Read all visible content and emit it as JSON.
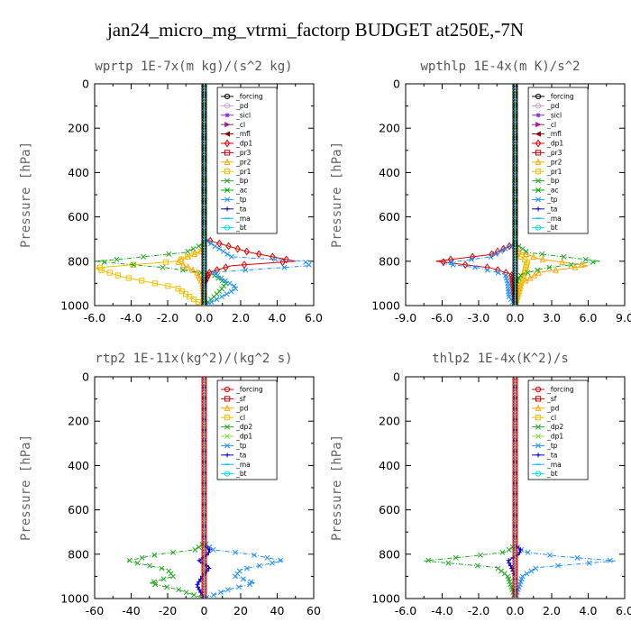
{
  "title": "jan24_micro_mg_vtrmi_factorp  BUDGET at250E,-7N",
  "chart_data": [
    {
      "type": "line",
      "title": "wprtp   1E-7x(m kg)/(s^2 kg)",
      "ylabel": "Pressure  [hPa]",
      "xlim": [
        -6,
        6
      ],
      "xticks": [
        "-6.0",
        "-4.0",
        "-2.0",
        "0.0",
        "2.0",
        "4.0",
        "6.0"
      ],
      "ylim": [
        0,
        1000
      ],
      "yticks": [
        "0",
        "200",
        "400",
        "600",
        "800",
        "1000"
      ],
      "series": [
        {
          "name": "_forcing",
          "color": "#000000",
          "marker": "o",
          "p": [
            0,
            200,
            400,
            600,
            700,
            800,
            900,
            1000
          ],
          "v": [
            0,
            0,
            0,
            0,
            0,
            0,
            0,
            0
          ]
        },
        {
          "name": "_pd",
          "color": "#c8a2c8",
          "marker": "o",
          "p": [
            0,
            400,
            800,
            1000
          ],
          "v": [
            0,
            0,
            0,
            0
          ]
        },
        {
          "name": "_sicl",
          "color": "#8a2be2",
          "marker": "*",
          "p": [
            0,
            400,
            800,
            1000
          ],
          "v": [
            0,
            0,
            0,
            0
          ]
        },
        {
          "name": "_cl",
          "color": "#a0208a",
          "marker": ">",
          "p": [
            0,
            400,
            800,
            1000
          ],
          "v": [
            0,
            0,
            0,
            0
          ]
        },
        {
          "name": "_mfl",
          "color": "#8b0000",
          "marker": "<",
          "p": [
            0,
            400,
            800,
            1000
          ],
          "v": [
            0,
            0,
            0,
            0
          ]
        },
        {
          "name": "_dp1",
          "color": "#e00000",
          "marker": "d",
          "p": [
            0,
            700,
            760,
            800,
            820,
            850,
            900,
            1000
          ],
          "v": [
            0,
            0,
            2.5,
            5.0,
            1.5,
            0.3,
            0,
            0
          ]
        },
        {
          "name": "_pr3",
          "color": "#e00000",
          "marker": "s",
          "p": [
            0,
            700,
            1000
          ],
          "v": [
            0,
            0,
            0
          ]
        },
        {
          "name": "_pr2",
          "color": "#ffa500",
          "marker": "^",
          "p": [
            0,
            750,
            800,
            850,
            900,
            1000
          ],
          "v": [
            0,
            0,
            -1.5,
            -0.4,
            -0.1,
            0
          ]
        },
        {
          "name": "_pr1",
          "color": "#f0c000",
          "marker": "s",
          "p": [
            0,
            750,
            800,
            830,
            870,
            920,
            960,
            1000
          ],
          "v": [
            0,
            0,
            -1.5,
            -6.0,
            -4.5,
            -1.5,
            -0.8,
            0
          ]
        },
        {
          "name": "_bp",
          "color": "#22aa22",
          "marker": "x",
          "p": [
            0,
            720,
            760,
            790,
            800,
            830,
            860,
            900,
            940,
            1000
          ],
          "v": [
            0,
            0,
            -1.0,
            -4.5,
            -6.0,
            -2.0,
            0.5,
            1.2,
            0.8,
            0
          ]
        },
        {
          "name": "_ac",
          "color": "#00aa00",
          "marker": "x",
          "p": [
            0,
            750,
            1000
          ],
          "v": [
            0,
            0,
            0
          ]
        },
        {
          "name": "_tp",
          "color": "#1e90ff",
          "marker": "x",
          "p": [
            0,
            700,
            780,
            800,
            820,
            850,
            880,
            920,
            950,
            980,
            1000
          ],
          "v": [
            0,
            0,
            1.5,
            5.5,
            5.8,
            0.5,
            1.0,
            1.8,
            1.2,
            0.5,
            0
          ]
        },
        {
          "name": "_ta",
          "color": "#0000cd",
          "marker": "+",
          "p": [
            0,
            750,
            1000
          ],
          "v": [
            0,
            0,
            0
          ]
        },
        {
          "name": "_ma",
          "color": "#00bfff",
          "marker": "-",
          "p": [
            0,
            750,
            1000
          ],
          "v": [
            0,
            0,
            0
          ]
        },
        {
          "name": "_bt",
          "color": "#00e5ee",
          "marker": "o",
          "p": [
            0,
            750,
            1000
          ],
          "v": [
            0,
            0,
            0
          ]
        }
      ]
    },
    {
      "type": "line",
      "title": "wpthlp   1E-4x(m K)/s^2",
      "ylabel": "Pressure  [hPa]",
      "xlim": [
        -9,
        9
      ],
      "xticks": [
        "-9.0",
        "-6.0",
        "-3.0",
        "0.0",
        "3.0",
        "6.0",
        "9.0"
      ],
      "ylim": [
        0,
        1000
      ],
      "yticks": [
        "0",
        "200",
        "400",
        "600",
        "800",
        "1000"
      ],
      "series": [
        {
          "name": "_forcing",
          "color": "#000000",
          "marker": "o",
          "p": [
            0,
            400,
            800,
            1000
          ],
          "v": [
            0,
            0,
            0,
            0
          ]
        },
        {
          "name": "_pd",
          "color": "#c8a2c8",
          "marker": "o",
          "p": [
            0,
            200,
            400,
            600,
            800,
            1000
          ],
          "v": [
            0,
            0,
            0,
            0,
            0,
            0
          ]
        },
        {
          "name": "_sicl",
          "color": "#8a2be2",
          "marker": "*",
          "p": [
            0,
            400,
            800,
            1000
          ],
          "v": [
            0,
            0,
            0,
            0
          ]
        },
        {
          "name": "_cl",
          "color": "#a0208a",
          "marker": ">",
          "p": [
            0,
            400,
            800,
            1000
          ],
          "v": [
            0,
            0,
            0,
            0
          ]
        },
        {
          "name": "_mfl",
          "color": "#8b0000",
          "marker": "<",
          "p": [
            0,
            400,
            800,
            1000
          ],
          "v": [
            0,
            0,
            0,
            0
          ]
        },
        {
          "name": "_dp1",
          "color": "#e00000",
          "marker": "d",
          "p": [
            0,
            720,
            770,
            800,
            830,
            860,
            1000
          ],
          "v": [
            0,
            0,
            -2.0,
            -6.5,
            -2.0,
            -0.3,
            0
          ]
        },
        {
          "name": "_pr3",
          "color": "#e00000",
          "marker": "s",
          "p": [
            0,
            700,
            1000
          ],
          "v": [
            0,
            0,
            0
          ]
        },
        {
          "name": "_pr2",
          "color": "#ffa500",
          "marker": "^",
          "p": [
            0,
            750,
            790,
            820,
            850,
            900,
            1000
          ],
          "v": [
            0,
            0,
            2.0,
            6.0,
            2.0,
            0.5,
            0
          ]
        },
        {
          "name": "_pr1",
          "color": "#f0c000",
          "marker": "s",
          "p": [
            0,
            760,
            800,
            850,
            900,
            1000
          ],
          "v": [
            0,
            0,
            1.0,
            0.8,
            0.4,
            0
          ]
        },
        {
          "name": "_bp",
          "color": "#22aa22",
          "marker": "x",
          "p": [
            0,
            720,
            760,
            800,
            830,
            860,
            900,
            1000
          ],
          "v": [
            0,
            0,
            1.0,
            7.0,
            2.5,
            0.5,
            0,
            0
          ]
        },
        {
          "name": "_ac",
          "color": "#00aa00",
          "marker": "x",
          "p": [
            0,
            750,
            1000
          ],
          "v": [
            0,
            0,
            0
          ]
        },
        {
          "name": "_tp",
          "color": "#1e90ff",
          "marker": "x",
          "p": [
            0,
            720,
            780,
            810,
            830,
            860,
            900,
            960,
            1000
          ],
          "v": [
            0,
            0,
            -2.0,
            -6.0,
            -3.0,
            -0.8,
            -0.6,
            -0.5,
            0
          ]
        },
        {
          "name": "_ta",
          "color": "#0000cd",
          "marker": "+",
          "p": [
            0,
            750,
            1000
          ],
          "v": [
            0,
            0,
            0
          ]
        },
        {
          "name": "_ma",
          "color": "#00bfff",
          "marker": "-",
          "p": [
            0,
            750,
            1000
          ],
          "v": [
            0,
            0,
            0
          ]
        },
        {
          "name": "_bt",
          "color": "#00e5ee",
          "marker": "o",
          "p": [
            0,
            750,
            1000
          ],
          "v": [
            0,
            0,
            0
          ]
        }
      ]
    },
    {
      "type": "line",
      "title": "rtp2   1E-11x(kg^2)/(kg^2 s)",
      "ylabel": "Pressure  [hPa]",
      "xlim": [
        -60,
        60
      ],
      "xticks": [
        "-60",
        "-40",
        "-20",
        "0",
        "20",
        "40",
        "60"
      ],
      "ylim": [
        0,
        1000
      ],
      "yticks": [
        "0",
        "200",
        "400",
        "600",
        "800",
        "1000"
      ],
      "series": [
        {
          "name": "_forcing",
          "color": "#e00000",
          "marker": "o",
          "p": [
            0,
            200,
            400,
            600,
            800,
            1000
          ],
          "v": [
            0,
            0,
            0,
            0,
            0,
            0
          ]
        },
        {
          "name": "_sf",
          "color": "#e00000",
          "marker": "s",
          "p": [
            0,
            400,
            800,
            1000
          ],
          "v": [
            0,
            0,
            0,
            0
          ]
        },
        {
          "name": "_pd",
          "color": "#ffa500",
          "marker": "^",
          "p": [
            0,
            400,
            800,
            1000
          ],
          "v": [
            0,
            0,
            0,
            0
          ]
        },
        {
          "name": "_cl",
          "color": "#f0c000",
          "marker": "s",
          "p": [
            0,
            400,
            800,
            1000
          ],
          "v": [
            0,
            0,
            0,
            0
          ]
        },
        {
          "name": "_dp2",
          "color": "#22aa22",
          "marker": "x",
          "p": [
            0,
            750,
            780,
            800,
            830,
            870,
            900,
            930,
            960,
            1000
          ],
          "v": [
            0,
            0,
            -5,
            -25,
            -42,
            -20,
            -17,
            -30,
            -14,
            0
          ]
        },
        {
          "name": "_dp1",
          "color": "#88dd44",
          "marker": "x",
          "p": [
            0,
            750,
            1000
          ],
          "v": [
            0,
            0,
            0
          ]
        },
        {
          "name": "_tp",
          "color": "#1e90ff",
          "marker": "x",
          "p": [
            0,
            750,
            780,
            800,
            830,
            870,
            900,
            930,
            960,
            1000
          ],
          "v": [
            0,
            0,
            5,
            25,
            43,
            20,
            17,
            28,
            13,
            0
          ]
        },
        {
          "name": "_ta",
          "color": "#0000cd",
          "marker": "+",
          "p": [
            0,
            760,
            780,
            800,
            830,
            860,
            900,
            940,
            1000
          ],
          "v": [
            0,
            0,
            3,
            2,
            -3,
            3,
            -1,
            -4,
            0
          ]
        },
        {
          "name": "_ma",
          "color": "#00bfff",
          "marker": "-",
          "p": [
            0,
            750,
            1000
          ],
          "v": [
            0,
            0,
            0
          ]
        },
        {
          "name": "_bt",
          "color": "#00e5ee",
          "marker": "o",
          "p": [
            0,
            750,
            1000
          ],
          "v": [
            0,
            0,
            0
          ]
        }
      ]
    },
    {
      "type": "line",
      "title": "thlp2   1E-4x(K^2)/s",
      "ylabel": "Pressure  [hPa]",
      "xlim": [
        -6,
        6
      ],
      "xticks": [
        "-6.0",
        "-4.0",
        "-2.0",
        "0.0",
        "2.0",
        "4.0",
        "6.0"
      ],
      "ylim": [
        0,
        1000
      ],
      "yticks": [
        "0",
        "200",
        "400",
        "600",
        "800",
        "1000"
      ],
      "series": [
        {
          "name": "_forcing",
          "color": "#e00000",
          "marker": "o",
          "p": [
            0,
            200,
            400,
            600,
            800,
            1000
          ],
          "v": [
            0,
            0,
            0,
            0,
            0,
            0
          ]
        },
        {
          "name": "_sf",
          "color": "#e00000",
          "marker": "s",
          "p": [
            0,
            400,
            800,
            1000
          ],
          "v": [
            0,
            0,
            0,
            0
          ]
        },
        {
          "name": "_pd",
          "color": "#ffa500",
          "marker": "^",
          "p": [
            0,
            400,
            800,
            1000
          ],
          "v": [
            0,
            0,
            0,
            0
          ]
        },
        {
          "name": "_cl",
          "color": "#f0c000",
          "marker": "s",
          "p": [
            0,
            400,
            800,
            1000
          ],
          "v": [
            0,
            0,
            0,
            0
          ]
        },
        {
          "name": "_dp2",
          "color": "#22aa22",
          "marker": "x",
          "p": [
            0,
            760,
            790,
            810,
            830,
            860,
            900,
            950,
            1000
          ],
          "v": [
            0,
            0,
            -0.5,
            -2.5,
            -5.0,
            -1.0,
            -0.4,
            -0.2,
            0
          ]
        },
        {
          "name": "_dp1",
          "color": "#88dd44",
          "marker": "x",
          "p": [
            0,
            750,
            1000
          ],
          "v": [
            0,
            0,
            0
          ]
        },
        {
          "name": "_tp",
          "color": "#1e90ff",
          "marker": "x",
          "p": [
            0,
            760,
            790,
            810,
            830,
            860,
            900,
            950,
            1000
          ],
          "v": [
            0,
            0,
            0.5,
            2.5,
            5.5,
            1.2,
            0.4,
            0.2,
            0
          ]
        },
        {
          "name": "_ta",
          "color": "#0000cd",
          "marker": "+",
          "p": [
            0,
            760,
            780,
            800,
            830,
            860,
            900,
            1000
          ],
          "v": [
            0,
            0,
            0.3,
            0.2,
            -0.4,
            -0.2,
            0,
            0
          ]
        },
        {
          "name": "_ma",
          "color": "#00bfff",
          "marker": "-",
          "p": [
            0,
            750,
            1000
          ],
          "v": [
            0,
            0,
            0
          ]
        },
        {
          "name": "_bt",
          "color": "#00e5ee",
          "marker": "o",
          "p": [
            0,
            750,
            1000
          ],
          "v": [
            0,
            0,
            0
          ]
        }
      ]
    }
  ]
}
